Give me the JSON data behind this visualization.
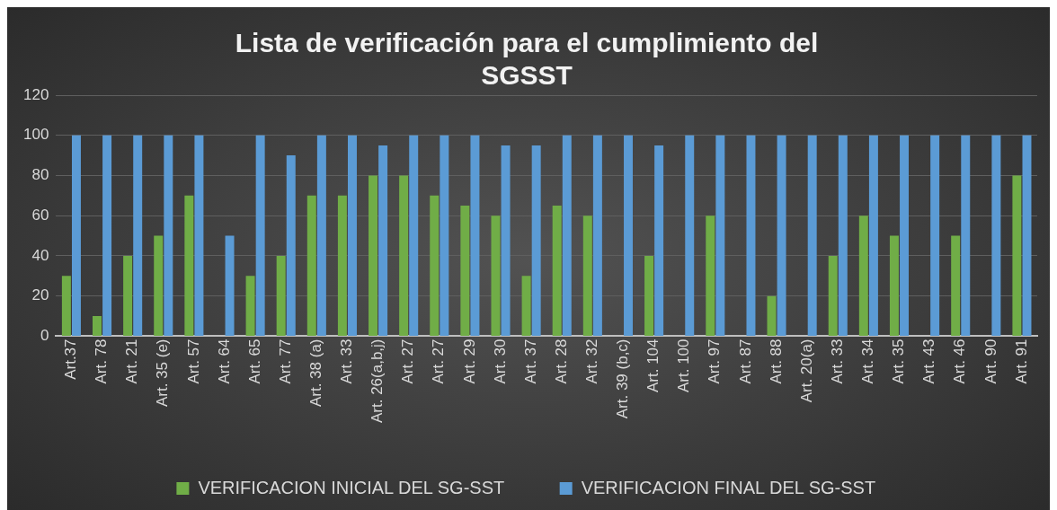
{
  "chart_data": {
    "type": "bar",
    "title": "Lista de verificación para el cumplimiento del SGSST",
    "categories": [
      "Art.37",
      "Art. 78",
      "Art. 21",
      "Art. 35 (e)",
      "Art. 57",
      "Art. 64",
      "Art. 65",
      "Art. 77",
      "Art. 38 (a)",
      "Art. 33",
      "Art. 26(a,b,j)",
      "Art. 27",
      "Art. 27",
      "Art. 29",
      "Art. 30",
      "Art. 37",
      "Art. 28",
      "Art. 32",
      "Art. 39 (b,c)",
      "Art. 104",
      "Art. 100",
      "Art. 97",
      "Art. 87",
      "Art. 88",
      "Art. 20(a)",
      "Art. 33",
      "Art. 34",
      "Art. 35",
      "Art. 43",
      "Art. 46",
      "Art. 90",
      "Art. 91"
    ],
    "series": [
      {
        "name": "VERIFICACION INICIAL DEL SG-SST",
        "color": "#70ad47",
        "values": [
          30,
          10,
          40,
          50,
          70,
          0,
          30,
          40,
          70,
          70,
          80,
          80,
          70,
          65,
          60,
          30,
          65,
          60,
          0,
          40,
          0,
          60,
          0,
          20,
          0,
          40,
          60,
          50,
          0,
          50,
          0,
          80
        ]
      },
      {
        "name": "VERIFICACION FINAL DEL SG-SST",
        "color": "#5b9bd5",
        "values": [
          100,
          100,
          100,
          100,
          100,
          50,
          100,
          90,
          100,
          100,
          95,
          100,
          100,
          100,
          95,
          95,
          100,
          100,
          100,
          95,
          100,
          100,
          100,
          100,
          100,
          100,
          100,
          100,
          100,
          100,
          100,
          100
        ]
      }
    ],
    "ylim": [
      0,
      120
    ],
    "yticks": [
      0,
      20,
      40,
      60,
      80,
      100,
      120
    ],
    "grid": "y",
    "legend": "bottom"
  }
}
